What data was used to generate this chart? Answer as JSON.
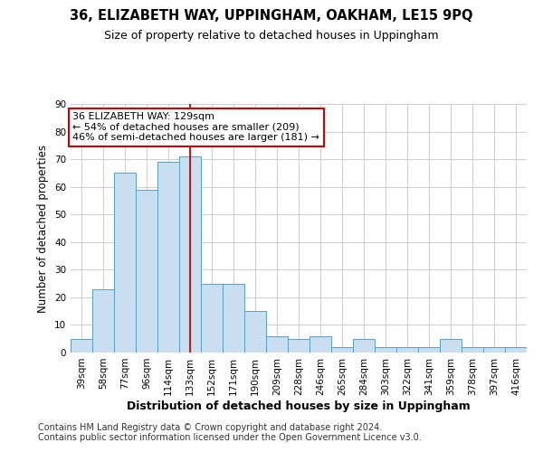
{
  "title": "36, ELIZABETH WAY, UPPINGHAM, OAKHAM, LE15 9PQ",
  "subtitle": "Size of property relative to detached houses in Uppingham",
  "xlabel": "Distribution of detached houses by size in Uppingham",
  "ylabel": "Number of detached properties",
  "categories": [
    "39sqm",
    "58sqm",
    "77sqm",
    "96sqm",
    "114sqm",
    "133sqm",
    "152sqm",
    "171sqm",
    "190sqm",
    "209sqm",
    "228sqm",
    "246sqm",
    "265sqm",
    "284sqm",
    "303sqm",
    "322sqm",
    "341sqm",
    "359sqm",
    "378sqm",
    "397sqm",
    "416sqm"
  ],
  "values": [
    5,
    23,
    65,
    59,
    69,
    71,
    25,
    25,
    15,
    6,
    5,
    6,
    2,
    5,
    2,
    2,
    2,
    5,
    2,
    2,
    2
  ],
  "bar_color": "#c9dff0",
  "bar_edge_color": "#5b9ec9",
  "vline_x_index": 5,
  "vline_color": "#cc0000",
  "annotation_line1": "36 ELIZABETH WAY: 129sqm",
  "annotation_line2": "← 54% of detached houses are smaller (209)",
  "annotation_line3": "46% of semi-detached houses are larger (181) →",
  "annotation_box_color": "#ffffff",
  "annotation_box_edge_color": "#cc0000",
  "footnote1": "Contains HM Land Registry data © Crown copyright and database right 2024.",
  "footnote2": "Contains public sector information licensed under the Open Government Licence v3.0.",
  "ylim": [
    0,
    90
  ],
  "yticks": [
    0,
    10,
    20,
    30,
    40,
    50,
    60,
    70,
    80,
    90
  ],
  "background_color": "#ffffff",
  "grid_color": "#d0d0d0",
  "title_fontsize": 10.5,
  "subtitle_fontsize": 9,
  "ylabel_fontsize": 8.5,
  "xlabel_fontsize": 9,
  "tick_fontsize": 7.5,
  "annotation_fontsize": 8,
  "footnote_fontsize": 7
}
